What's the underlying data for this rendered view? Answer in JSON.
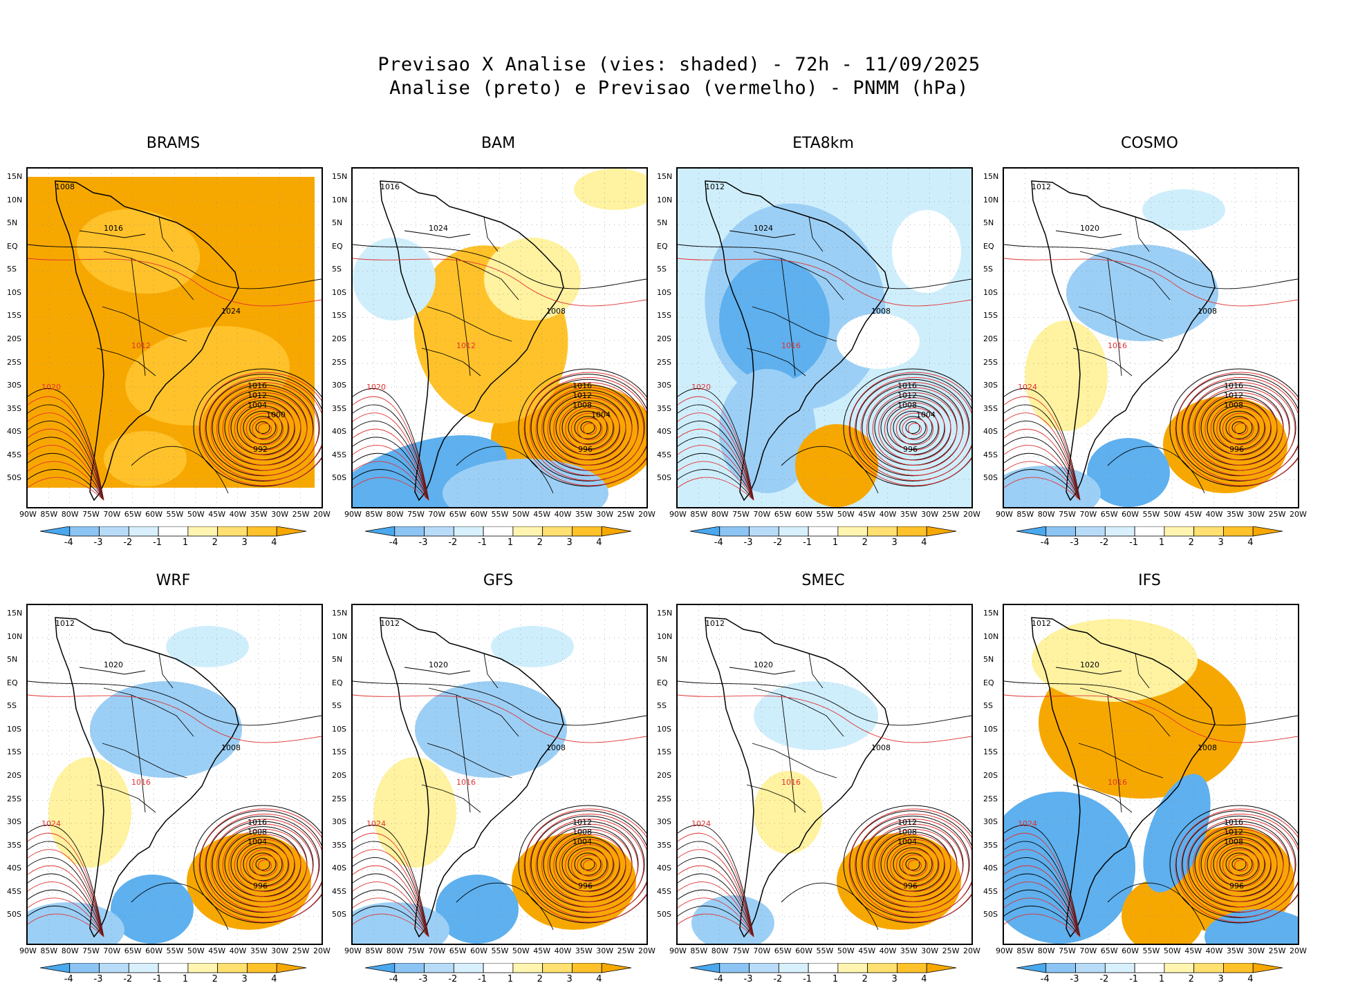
{
  "title": {
    "line1": "Previsao X Analise (vies: shaded) - 72h - 11/09/2025",
    "line2": "Analise (preto) e Previsao (vermelho) - PNMM (hPa)"
  },
  "x_ticks": [
    "90W",
    "85W",
    "80W",
    "75W",
    "70W",
    "65W",
    "60W",
    "55W",
    "50W",
    "45W",
    "40W",
    "35W",
    "30W",
    "25W",
    "20W"
  ],
  "y_ticks": [
    "15N",
    "10N",
    "5N",
    "EQ",
    "5S",
    "10S",
    "15S",
    "20S",
    "25S",
    "30S",
    "35S",
    "40S",
    "45S",
    "50S"
  ],
  "colorbar": {
    "ticks": [
      "-4",
      "-3",
      "-2",
      "-1",
      "1",
      "2",
      "3",
      "4"
    ],
    "colors": [
      "#4aa8ee",
      "#8cc4f4",
      "#b8dcf8",
      "#d8f0fc",
      "#ffffff",
      "#fff5b0",
      "#ffe070",
      "#ffc22a",
      "#f7a800"
    ]
  },
  "colors": {
    "analysis": "#000000",
    "forecast": "#e03030",
    "warm_strong": "#f7a800",
    "warm_mid": "#ffc22a",
    "warm_light": "#fff2a0",
    "cool_light": "#cfeefc",
    "cool_mid": "#9ccff5",
    "cool_strong": "#5eb0ee"
  },
  "panels": [
    {
      "name": "BRAMS",
      "bias": "warm",
      "low_center": "992",
      "low_labels": [
        "1016",
        "1012",
        "1004",
        "1000"
      ],
      "labels": [
        "1008",
        "1012",
        "1016",
        "1020",
        "1024"
      ]
    },
    {
      "name": "BAM",
      "bias": "mixed-warm",
      "low_center": "996",
      "low_labels": [
        "1016",
        "1012",
        "1008",
        "1004"
      ],
      "labels": [
        "1016",
        "1012",
        "1024",
        "1020",
        "1008"
      ]
    },
    {
      "name": "ETA8km",
      "bias": "cool",
      "low_center": "996",
      "low_labels": [
        "1016",
        "1012",
        "1008",
        "1004"
      ],
      "labels": [
        "1012",
        "1016",
        "1024",
        "1020",
        "1008"
      ]
    },
    {
      "name": "COSMO",
      "bias": "mixed-cool",
      "low_center": "996",
      "low_labels": [
        "1016",
        "1012",
        "1008"
      ],
      "labels": [
        "1012",
        "1016",
        "1020",
        "1024",
        "1008"
      ]
    },
    {
      "name": "WRF",
      "bias": "mixed-cool",
      "low_center": "996",
      "low_labels": [
        "1016",
        "1008",
        "1004"
      ],
      "labels": [
        "1012",
        "1016",
        "1020",
        "1024",
        "1008"
      ]
    },
    {
      "name": "GFS",
      "bias": "mixed-cool",
      "low_center": "996",
      "low_labels": [
        "1012",
        "1008",
        "1004"
      ],
      "labels": [
        "1012",
        "1016",
        "1020",
        "1024",
        "1008"
      ]
    },
    {
      "name": "SMEC",
      "bias": "mixed",
      "low_center": "996",
      "low_labels": [
        "1012",
        "1008",
        "1004"
      ],
      "labels": [
        "1012",
        "1016",
        "1020",
        "1024",
        "1008"
      ]
    },
    {
      "name": "IFS",
      "bias": "warm-cool",
      "low_center": "996",
      "low_labels": [
        "1016",
        "1012",
        "1008"
      ],
      "labels": [
        "1012",
        "1016",
        "1020",
        "1024",
        "1008"
      ]
    }
  ]
}
